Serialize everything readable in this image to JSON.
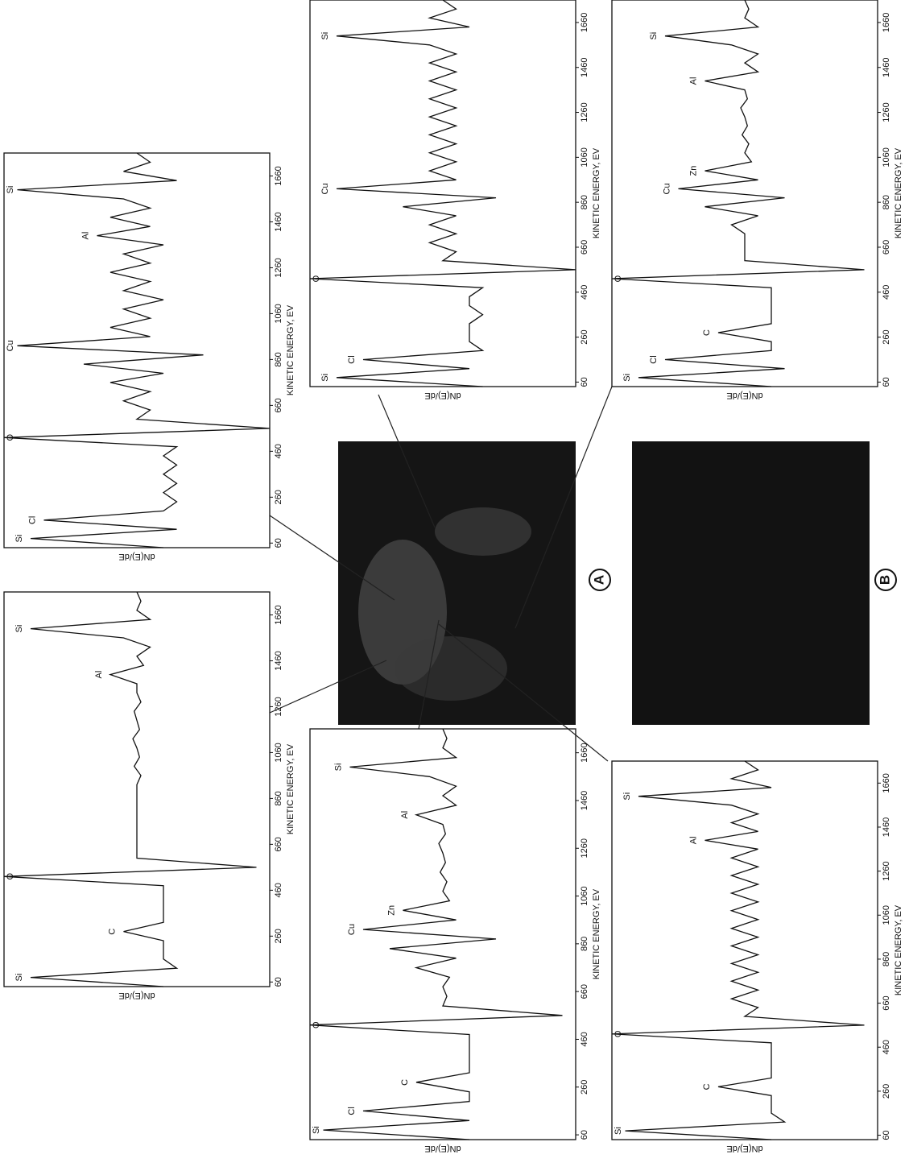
{
  "figure_labels": [
    "A",
    "B"
  ],
  "chart_data": [
    {
      "type": "line",
      "x": [
        40,
        80,
        120,
        160,
        200,
        240,
        280,
        320,
        360,
        400,
        440,
        480,
        520,
        560,
        600,
        640,
        680,
        720,
        760,
        800,
        840,
        880,
        920,
        960,
        1000,
        1040,
        1080,
        1120,
        1160,
        1200,
        1240,
        1280,
        1320,
        1360,
        1400,
        1440,
        1480,
        1520,
        1560,
        1600,
        1640,
        1680,
        1720,
        1760
      ],
      "series": [
        {
          "color": "#111111",
          "values": [
            2,
            -8,
            3,
            -7,
            2,
            3,
            2,
            3,
            2,
            3,
            2,
            3,
            -10,
            10,
            0,
            1,
            -1,
            1,
            -2,
            2,
            -4,
            5,
            -9,
            1,
            -2,
            1,
            -1,
            2,
            -1,
            1,
            -2,
            1,
            -1,
            2,
            -3,
            1,
            -2,
            1,
            -1,
            -9,
            3,
            -1,
            1,
            0
          ]
        }
      ],
      "xlim": [
        40,
        1760
      ],
      "ylim": [
        -10,
        10
      ],
      "xticks": [
        60,
        260,
        460,
        660,
        860,
        1060,
        1260,
        1460,
        1660
      ],
      "xlabel": "KINETIC ENERGY, EV",
      "ylabel": "dN(E)/dE",
      "annotations": [
        {
          "text": "Si",
          "x": 80
        },
        {
          "text": "Cl",
          "x": 160
        },
        {
          "text": "O",
          "x": 520
        },
        {
          "text": "Cu",
          "x": 920
        },
        {
          "text": "Al",
          "x": 1400
        },
        {
          "text": "Si",
          "x": 1600
        }
      ]
    },
    {
      "type": "line",
      "x": [
        40,
        80,
        120,
        160,
        200,
        240,
        280,
        320,
        360,
        400,
        440,
        480,
        520,
        560,
        600,
        640,
        680,
        720,
        760,
        800,
        840,
        880,
        920,
        960,
        1000,
        1040,
        1080,
        1120,
        1160,
        1200,
        1240,
        1280,
        1320,
        1360,
        1400,
        1440,
        1480,
        1520,
        1560,
        1600,
        1640,
        1680,
        1720,
        1760
      ],
      "series": [
        {
          "color": "#111111",
          "values": [
            2,
            -8,
            3,
            2,
            2,
            2,
            -1,
            2,
            2,
            2,
            2,
            2,
            -10,
            9,
            0,
            0,
            0,
            0,
            0,
            0,
            0,
            0,
            0,
            0.3,
            -0.2,
            0.2,
            0,
            -0.3,
            0.2,
            0,
            -0.2,
            0.3,
            0,
            0,
            -2,
            0.5,
            0,
            1,
            -1,
            -8,
            1,
            0,
            0.3,
            0
          ]
        }
      ],
      "xlim": [
        40,
        1760
      ],
      "ylim": [
        -10,
        10
      ],
      "xticks": [
        60,
        260,
        460,
        660,
        860,
        1060,
        1260,
        1460,
        1660
      ],
      "xlabel": "KINETIC ENERGY, EV",
      "ylabel": "dN(E)/dE",
      "annotations": [
        {
          "text": "Si",
          "x": 80
        },
        {
          "text": "C",
          "x": 280
        },
        {
          "text": "O",
          "x": 520
        },
        {
          "text": "Al",
          "x": 1400
        },
        {
          "text": "Si",
          "x": 1600
        }
      ]
    },
    {
      "type": "line",
      "x": [
        40,
        80,
        120,
        160,
        200,
        240,
        280,
        320,
        360,
        400,
        440,
        480,
        520,
        560,
        600,
        640,
        680,
        720,
        760,
        800,
        840,
        880,
        920,
        960,
        1000,
        1040,
        1080,
        1120,
        1160,
        1200,
        1240,
        1280,
        1320,
        1360,
        1400,
        1440,
        1480,
        1520,
        1560,
        1600,
        1640,
        1680,
        1720,
        1760
      ],
      "series": [
        {
          "color": "#111111",
          "values": [
            3,
            -8,
            2,
            -6,
            3,
            2,
            2,
            2,
            3,
            2,
            2,
            3,
            -10,
            10,
            0,
            1,
            -1,
            1,
            -1,
            1,
            -3,
            4,
            -8,
            1,
            -1,
            1,
            -1,
            1,
            -1,
            1,
            -1,
            1,
            -1,
            1,
            -1,
            1,
            -1,
            1,
            -1,
            -8,
            2,
            -1,
            1,
            0
          ]
        }
      ],
      "xlim": [
        40,
        1760
      ],
      "ylim": [
        -10,
        10
      ],
      "xticks": [
        60,
        260,
        460,
        660,
        860,
        1060,
        1260,
        1460,
        1660
      ],
      "xlabel": "KINETIC ENERGY, EV",
      "ylabel": "dN(E)/dE",
      "annotations": [
        {
          "text": "Si",
          "x": 80
        },
        {
          "text": "Cl",
          "x": 160
        },
        {
          "text": "O",
          "x": 520
        },
        {
          "text": "Cu",
          "x": 920
        },
        {
          "text": "Si",
          "x": 1600
        }
      ]
    },
    {
      "type": "line",
      "x": [
        40,
        80,
        120,
        160,
        200,
        240,
        280,
        320,
        360,
        400,
        440,
        480,
        520,
        560,
        600,
        640,
        680,
        720,
        760,
        800,
        840,
        880,
        920,
        960,
        1000,
        1040,
        1080,
        1120,
        1160,
        1200,
        1240,
        1280,
        1320,
        1360,
        1400,
        1440,
        1480,
        1520,
        1560,
        1600,
        1640,
        1680,
        1720,
        1760
      ],
      "series": [
        {
          "color": "#111111",
          "values": [
            2,
            -8,
            3,
            -6,
            2,
            2,
            -2,
            2,
            2,
            2,
            2,
            2,
            -10,
            9,
            0,
            0,
            0,
            0,
            -1,
            1,
            -3,
            3,
            -5,
            1,
            -3,
            0.5,
            0,
            0.3,
            -0.2,
            0.2,
            0,
            -0.3,
            0.2,
            0,
            -3,
            1,
            0,
            1,
            -1,
            -6,
            1,
            0,
            0.3,
            0
          ]
        }
      ],
      "xlim": [
        40,
        1760
      ],
      "ylim": [
        -10,
        10
      ],
      "xticks": [
        60,
        260,
        460,
        660,
        860,
        1060,
        1260,
        1460,
        1660
      ],
      "xlabel": "KINETIC ENERGY, EV",
      "ylabel": "dN(E)/dE",
      "annotations": [
        {
          "text": "Si",
          "x": 80
        },
        {
          "text": "Cl",
          "x": 160
        },
        {
          "text": "C",
          "x": 280
        },
        {
          "text": "O",
          "x": 520
        },
        {
          "text": "Cu",
          "x": 920
        },
        {
          "text": "Zn",
          "x": 1000
        },
        {
          "text": "Al",
          "x": 1400
        },
        {
          "text": "Si",
          "x": 1600
        }
      ]
    },
    {
      "type": "line",
      "x": [
        40,
        80,
        120,
        160,
        200,
        240,
        280,
        320,
        360,
        400,
        440,
        480,
        520,
        560,
        600,
        640,
        680,
        720,
        760,
        800,
        840,
        880,
        920,
        960,
        1000,
        1040,
        1080,
        1120,
        1160,
        1200,
        1240,
        1280,
        1320,
        1360,
        1400,
        1440,
        1480,
        1520,
        1560,
        1600,
        1640,
        1680,
        1720,
        1760
      ],
      "series": [
        {
          "color": "#111111",
          "values": [
            2,
            -9,
            2,
            -6,
            2,
            2,
            -2,
            2,
            2,
            2,
            2,
            2,
            -10,
            9,
            0,
            0.3,
            0,
            0.5,
            -2,
            1,
            -4,
            4,
            -6,
            1,
            -3,
            0.5,
            0,
            0.3,
            -0.2,
            0.2,
            0,
            -0.3,
            0.2,
            0,
            -2,
            1,
            0,
            1,
            -1,
            -7,
            1,
            0,
            0.3,
            0
          ]
        }
      ],
      "xlim": [
        40,
        1760
      ],
      "ylim": [
        -10,
        10
      ],
      "xticks": [
        60,
        260,
        460,
        660,
        860,
        1060,
        1260,
        1460,
        1660
      ],
      "xlabel": "KINETIC ENERGY, EV",
      "ylabel": "dN(E)/dE",
      "annotations": [
        {
          "text": "Si",
          "x": 80
        },
        {
          "text": "Cl",
          "x": 160
        },
        {
          "text": "C",
          "x": 280
        },
        {
          "text": "O",
          "x": 520
        },
        {
          "text": "Cu",
          "x": 920
        },
        {
          "text": "Zn",
          "x": 1000
        },
        {
          "text": "Al",
          "x": 1400
        },
        {
          "text": "Si",
          "x": 1600
        }
      ]
    },
    {
      "type": "line",
      "x": [
        40,
        80,
        120,
        160,
        200,
        240,
        280,
        320,
        360,
        400,
        440,
        480,
        520,
        560,
        600,
        640,
        680,
        720,
        760,
        800,
        840,
        880,
        920,
        960,
        1000,
        1040,
        1080,
        1120,
        1160,
        1200,
        1240,
        1280,
        1320,
        1360,
        1400,
        1440,
        1480,
        1520,
        1560,
        1600,
        1640,
        1680,
        1720,
        1760
      ],
      "series": [
        {
          "color": "#111111",
          "values": [
            2,
            -9,
            3,
            2,
            2,
            2,
            -2,
            2,
            2,
            2,
            2,
            2,
            -10,
            9,
            0,
            1,
            -1,
            1,
            -1,
            1,
            -1,
            1,
            -1,
            1,
            -1,
            1,
            -1,
            1,
            -1,
            1,
            -1,
            1,
            -1,
            1,
            -3,
            1,
            -1,
            1,
            -1,
            -8,
            2,
            -1,
            1,
            0
          ]
        }
      ],
      "xlim": [
        40,
        1760
      ],
      "ylim": [
        -10,
        10
      ],
      "xticks": [
        60,
        260,
        460,
        660,
        860,
        1060,
        1260,
        1460,
        1660
      ],
      "xlabel": "KINETIC ENERGY, EV",
      "ylabel": "dN(E)/dE",
      "annotations": [
        {
          "text": "Si",
          "x": 80
        },
        {
          "text": "C",
          "x": 280
        },
        {
          "text": "O",
          "x": 520
        },
        {
          "text": "Al",
          "x": 1400
        },
        {
          "text": "Si",
          "x": 1600
        }
      ]
    }
  ]
}
